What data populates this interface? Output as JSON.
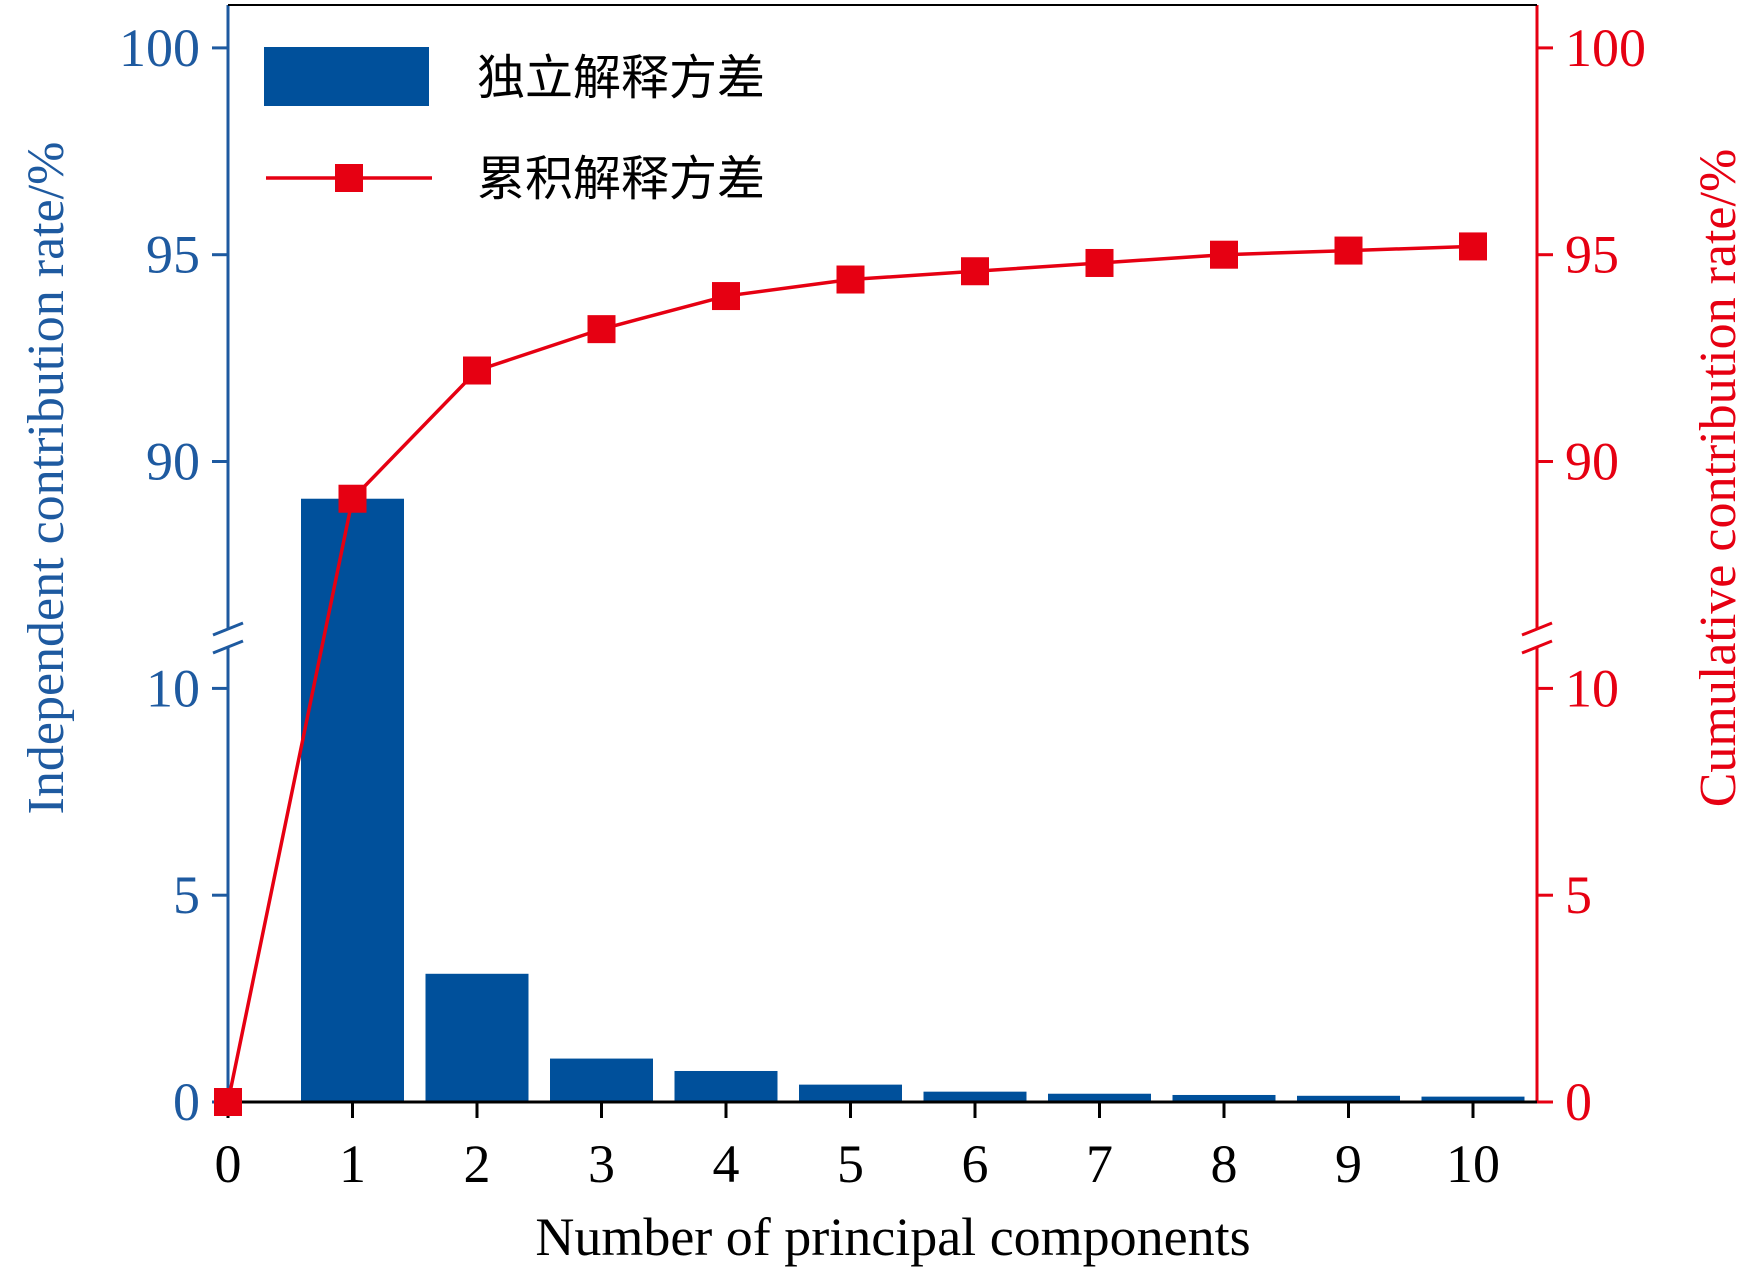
{
  "colors": {
    "left_axis": "#1E5AA0",
    "bar": "#00509B",
    "right_axis": "#E60012",
    "line": "#E60012",
    "text": "#000000"
  },
  "chart_data": {
    "type": "bar",
    "x": [
      0,
      1,
      2,
      3,
      4,
      5,
      6,
      7,
      8,
      9,
      10
    ],
    "xlabel": "Number of principal components",
    "xticks": [
      "0",
      "1",
      "2",
      "3",
      "4",
      "5",
      "6",
      "7",
      "8",
      "9",
      "10"
    ],
    "left_axis": {
      "label": "Independent contribution rate/%",
      "broken": true,
      "lower_range": [
        0,
        11
      ],
      "upper_range": [
        86,
        101
      ],
      "ticks": [
        "0",
        "5",
        "10",
        "90",
        "95",
        "100"
      ]
    },
    "right_axis": {
      "label": "Cumulative contribution rate/%",
      "broken": true,
      "lower_range": [
        0,
        11
      ],
      "upper_range": [
        86,
        101
      ],
      "ticks": [
        "0",
        "5",
        "10",
        "90",
        "95",
        "100"
      ]
    },
    "legend_position": "top-left",
    "series": [
      {
        "name": "独立解释方差",
        "type": "bar",
        "axis": "left",
        "x": [
          1,
          2,
          3,
          4,
          5,
          6,
          7,
          8,
          9,
          10
        ],
        "values": [
          89.1,
          3.1,
          1.05,
          0.75,
          0.42,
          0.25,
          0.2,
          0.17,
          0.15,
          0.13
        ]
      },
      {
        "name": "累积解释方差",
        "type": "line",
        "marker": "square",
        "axis": "right",
        "x": [
          0,
          1,
          2,
          3,
          4,
          5,
          6,
          7,
          8,
          9,
          10
        ],
        "values": [
          0,
          89.1,
          92.2,
          93.2,
          94.0,
          94.4,
          94.6,
          94.8,
          95.0,
          95.1,
          95.2
        ]
      }
    ]
  }
}
